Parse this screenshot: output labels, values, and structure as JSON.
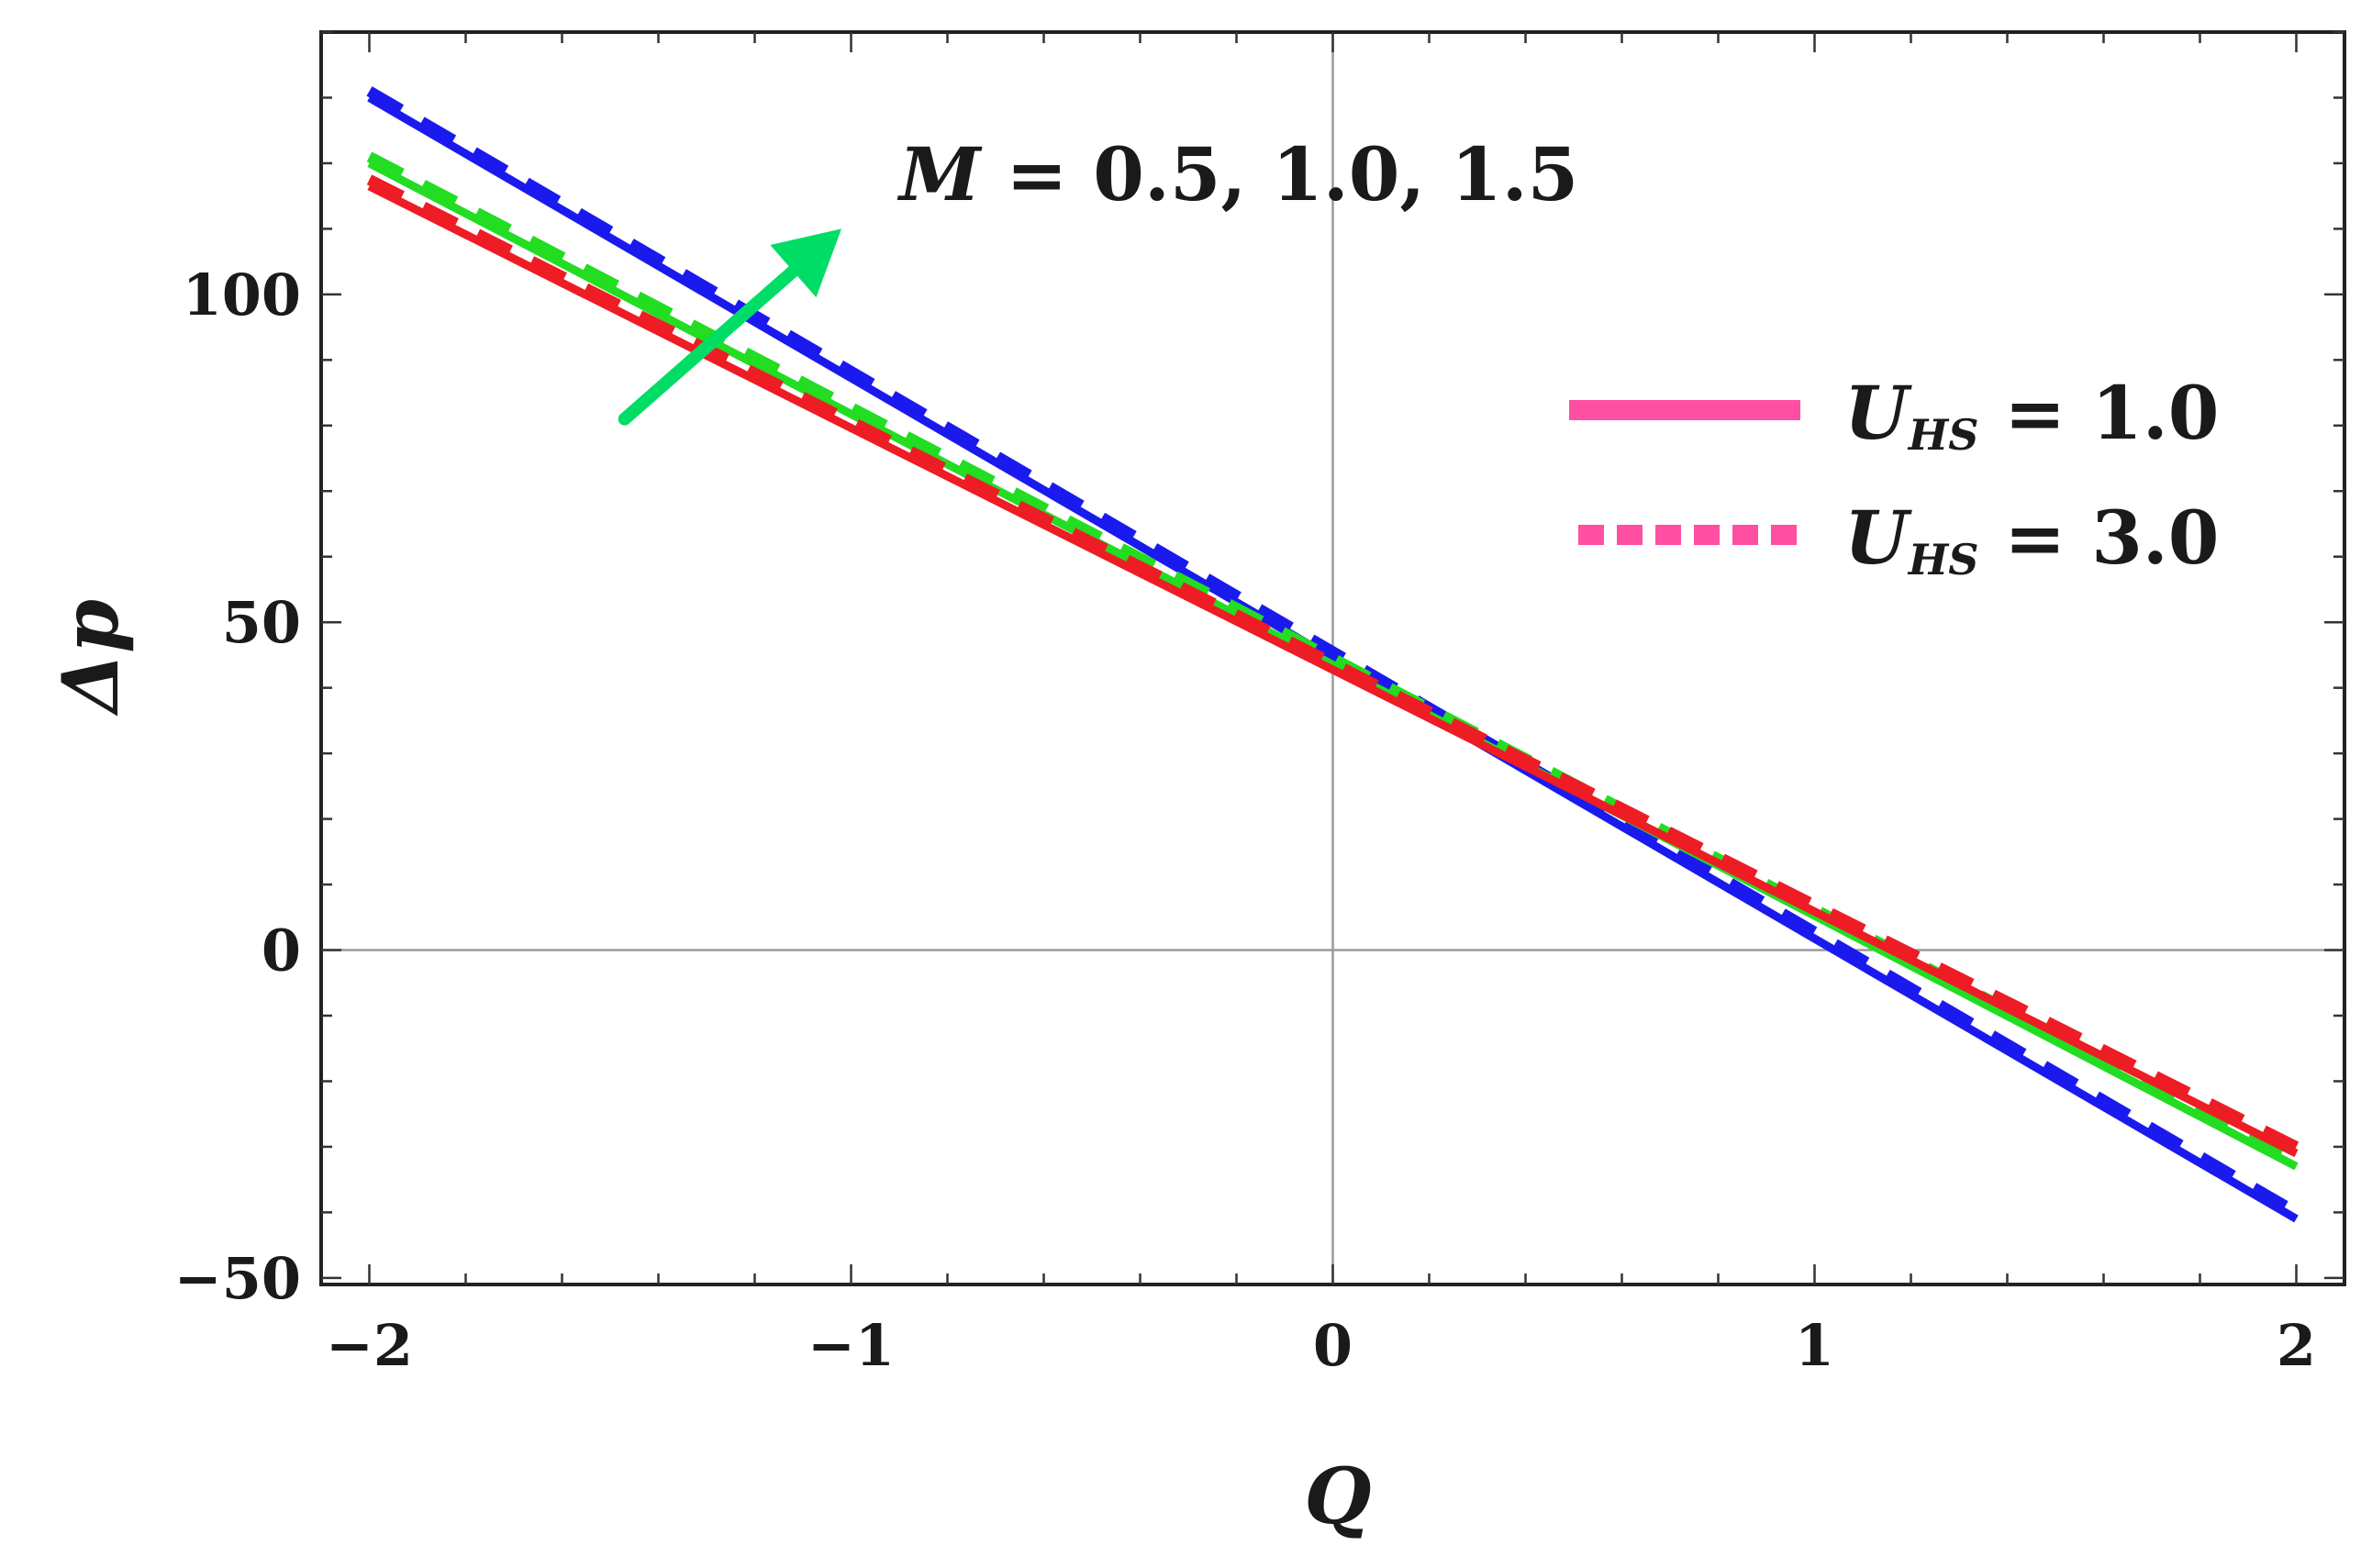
{
  "chart_data": {
    "type": "line",
    "xlabel": "Q",
    "ylabel": "Δp",
    "xlim": [
      -2.1,
      2.1
    ],
    "ylim": [
      -51,
      140
    ],
    "x_ticks": [
      -2,
      -1,
      0,
      1,
      2
    ],
    "x_tick_labels": [
      "−2",
      "−1",
      "0",
      "1",
      "2"
    ],
    "y_ticks": [
      -50,
      0,
      50,
      100
    ],
    "y_tick_labels": [
      "−50",
      "0",
      "50",
      "100"
    ],
    "grid": false,
    "zero_lines": true,
    "series": [
      {
        "group": "M = 0.5",
        "color": "#ee1c24",
        "style": "solid",
        "x": [
          -2,
          2
        ],
        "y": [
          116.5,
          -31
        ]
      },
      {
        "group": "M = 0.5",
        "color": "#ee1c24",
        "style": "dashed",
        "x": [
          -2,
          2
        ],
        "y": [
          117.5,
          -30
        ]
      },
      {
        "group": "M = 1.0",
        "color": "#22dd22",
        "style": "solid",
        "x": [
          -2,
          2
        ],
        "y": [
          120,
          -33
        ]
      },
      {
        "group": "M = 1.0",
        "color": "#22dd22",
        "style": "dashed",
        "x": [
          -2,
          2
        ],
        "y": [
          121,
          -32
        ]
      },
      {
        "group": "M = 1.5",
        "color": "#1a1aee",
        "style": "solid",
        "x": [
          -2,
          2
        ],
        "y": [
          130,
          -41
        ]
      },
      {
        "group": "M = 1.5",
        "color": "#1a1aee",
        "style": "dashed",
        "x": [
          -2,
          2
        ],
        "y": [
          131,
          -40
        ]
      }
    ],
    "annotation": {
      "text_var": "M",
      "text_rest": " =  0.5, 1.0, 1.5",
      "arrow_color": "#00dd66",
      "arrow_from": [
        -1.47,
        81
      ],
      "arrow_to": [
        -1.02,
        110
      ]
    },
    "legend": {
      "placement": "right",
      "color": "#ff4fa3",
      "entries": [
        {
          "style": "solid",
          "var": "U",
          "sub": "HS",
          "rest": " = 1.0"
        },
        {
          "style": "dotted",
          "var": "U",
          "sub": "HS",
          "rest": " = 3.0"
        }
      ]
    }
  }
}
